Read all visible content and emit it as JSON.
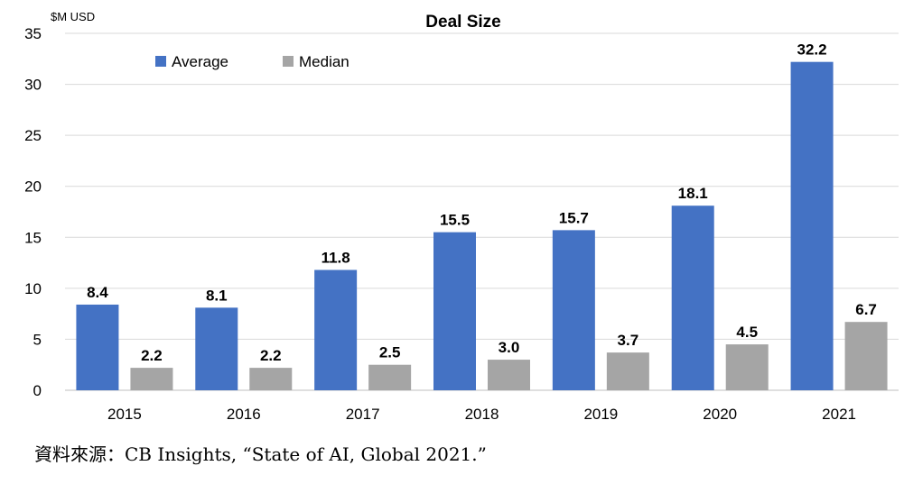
{
  "chart_data": {
    "type": "bar",
    "title": "Deal Size",
    "ylabel": "$M USD",
    "xlabel": "",
    "categories": [
      "2015",
      "2016",
      "2017",
      "2018",
      "2019",
      "2020",
      "2021"
    ],
    "series": [
      {
        "name": "Average",
        "color": "#4472C4",
        "values": [
          8.4,
          8.1,
          11.8,
          15.5,
          15.7,
          18.1,
          32.2
        ]
      },
      {
        "name": "Median",
        "color": "#A5A5A5",
        "values": [
          2.2,
          2.2,
          2.5,
          3.0,
          3.7,
          4.5,
          6.7
        ]
      }
    ],
    "data_labels": [
      [
        "8.4",
        "8.1",
        "11.8",
        "15.5",
        "15.7",
        "18.1",
        "32.2"
      ],
      [
        "2.2",
        "2.2",
        "2.5",
        "3.0",
        "3.7",
        "4.5",
        "6.7"
      ]
    ],
    "ylim": [
      0,
      35
    ],
    "yticks": [
      0,
      5,
      10,
      15,
      20,
      25,
      30,
      35
    ],
    "grid": true,
    "legend_position": "top-left"
  },
  "source": "資料來源：CB Insights, “State of AI, Global 2021.”"
}
